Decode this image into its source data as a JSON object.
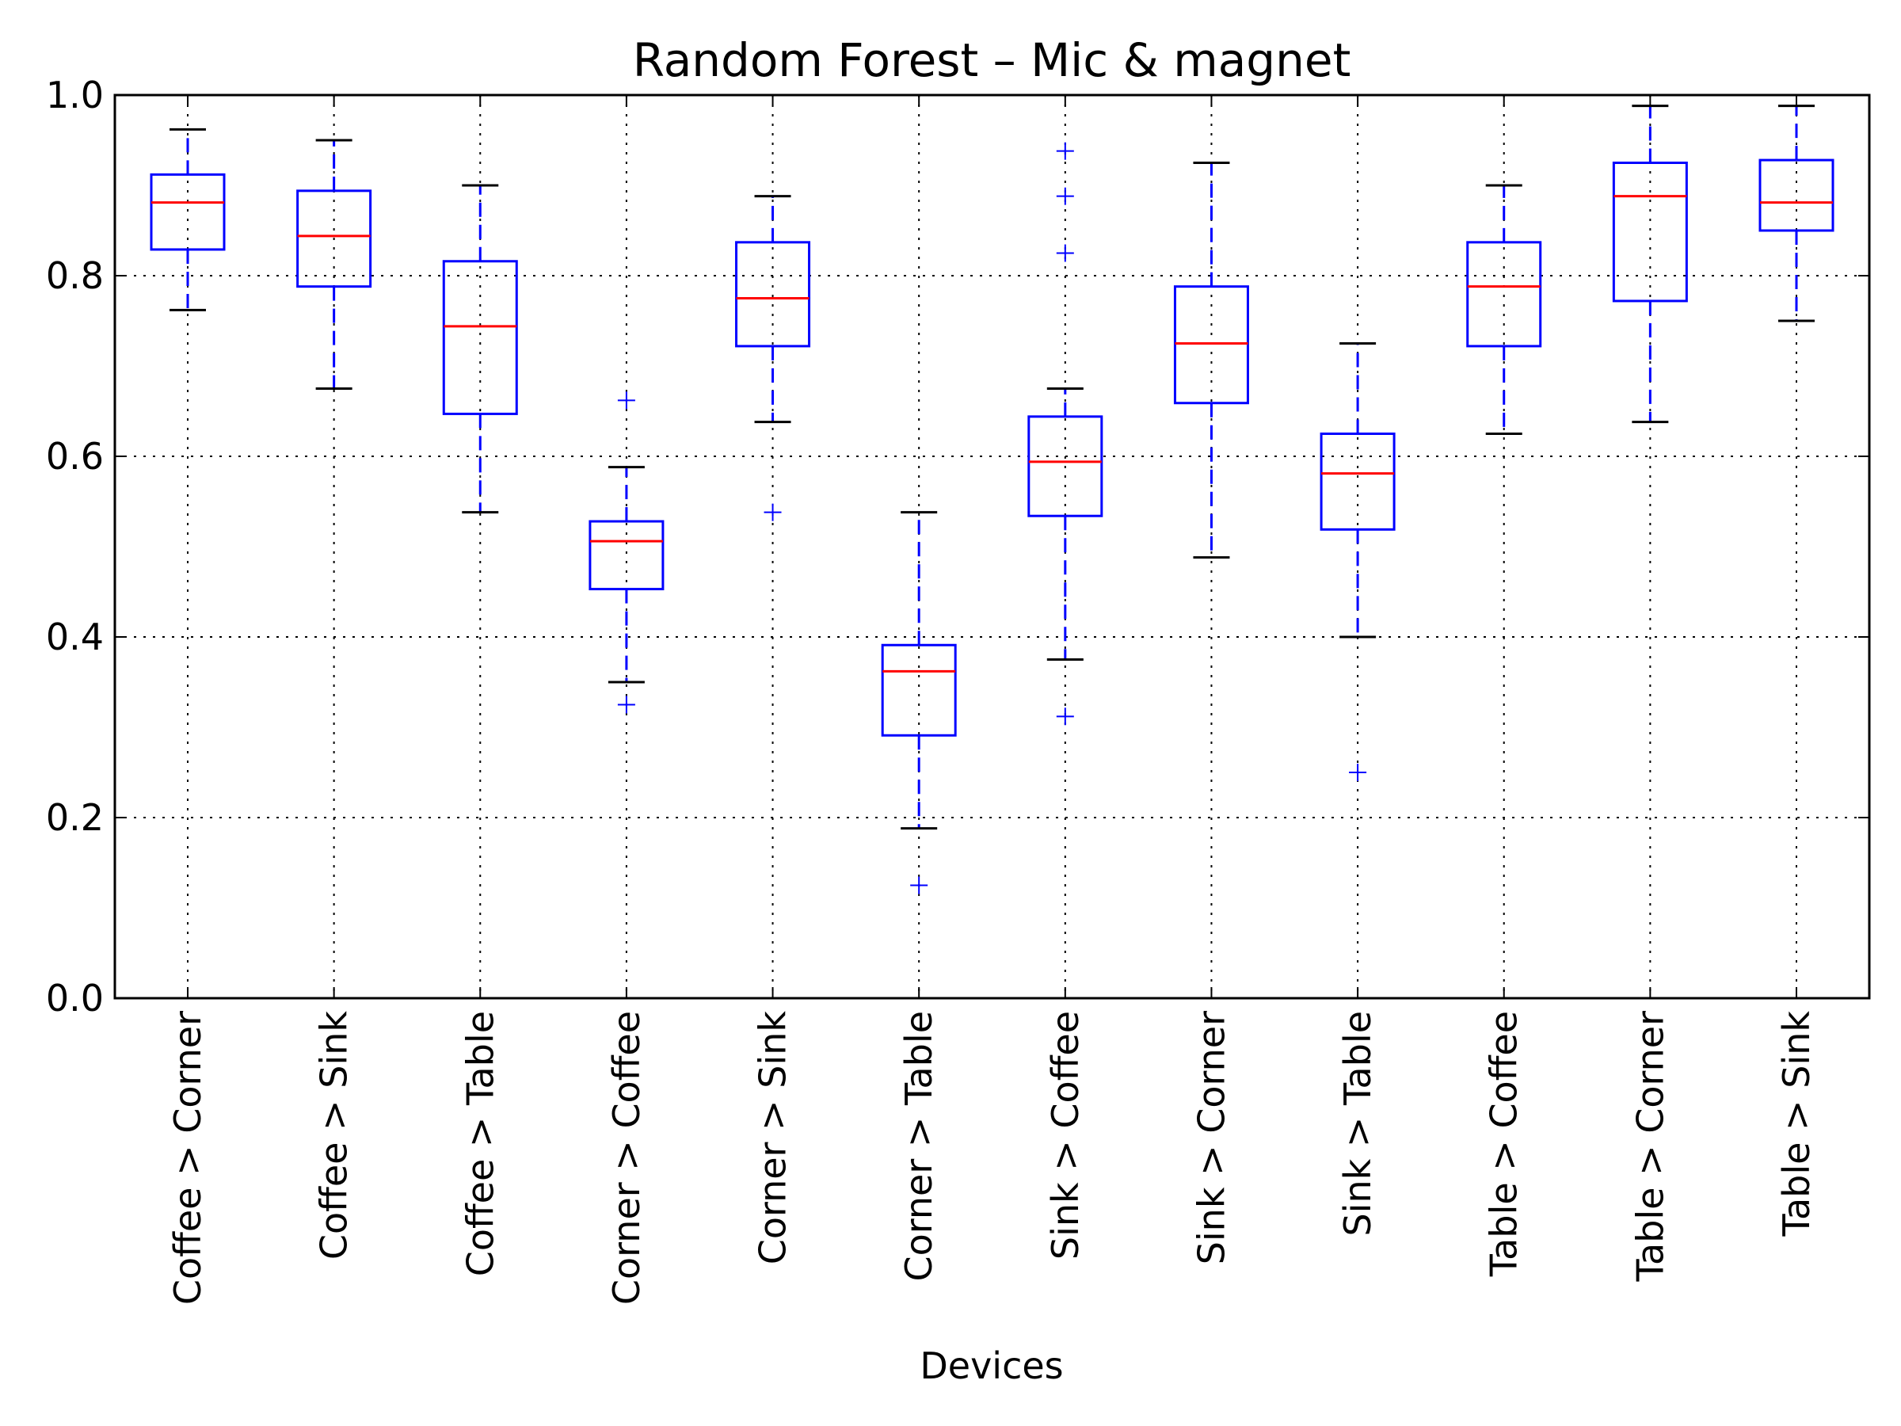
{
  "chart_data": {
    "type": "box",
    "title": "Random Forest – Mic & magnet",
    "xlabel": "Devices",
    "ylabel": "",
    "ylim": [
      0.0,
      1.0
    ],
    "yticks": [
      "0.0",
      "0.2",
      "0.4",
      "0.6",
      "0.8",
      "1.0"
    ],
    "grid": true,
    "colors": {
      "box": "#0000ff",
      "median": "#ff0000",
      "cap": "#000000",
      "flier": "#0000ff",
      "grid": "#000000"
    },
    "categories": [
      "Coffee > Corner",
      "Coffee > Sink",
      "Coffee > Table",
      "Corner > Coffee",
      "Corner > Sink",
      "Corner > Table",
      "Sink > Coffee",
      "Sink > Corner",
      "Sink > Table",
      "Table > Coffee",
      "Table > Corner",
      "Table > Sink"
    ],
    "boxes": [
      {
        "whisker_low": 0.762,
        "q1": 0.829,
        "median": 0.881,
        "q3": 0.912,
        "whisker_high": 0.962,
        "fliers": []
      },
      {
        "whisker_low": 0.675,
        "q1": 0.788,
        "median": 0.844,
        "q3": 0.894,
        "whisker_high": 0.95,
        "fliers": []
      },
      {
        "whisker_low": 0.538,
        "q1": 0.647,
        "median": 0.744,
        "q3": 0.816,
        "whisker_high": 0.9,
        "fliers": []
      },
      {
        "whisker_low": 0.35,
        "q1": 0.453,
        "median": 0.506,
        "q3": 0.528,
        "whisker_high": 0.588,
        "fliers": [
          0.662,
          0.325
        ]
      },
      {
        "whisker_low": 0.638,
        "q1": 0.722,
        "median": 0.775,
        "q3": 0.837,
        "whisker_high": 0.888,
        "fliers": [
          0.538
        ]
      },
      {
        "whisker_low": 0.188,
        "q1": 0.291,
        "median": 0.362,
        "q3": 0.391,
        "whisker_high": 0.538,
        "fliers": [
          0.125
        ]
      },
      {
        "whisker_low": 0.375,
        "q1": 0.534,
        "median": 0.594,
        "q3": 0.644,
        "whisker_high": 0.675,
        "fliers": [
          0.938,
          0.888,
          0.825,
          0.312
        ]
      },
      {
        "whisker_low": 0.488,
        "q1": 0.659,
        "median": 0.725,
        "q3": 0.788,
        "whisker_high": 0.925,
        "fliers": []
      },
      {
        "whisker_low": 0.4,
        "q1": 0.519,
        "median": 0.581,
        "q3": 0.625,
        "whisker_high": 0.725,
        "fliers": [
          0.25
        ]
      },
      {
        "whisker_low": 0.625,
        "q1": 0.722,
        "median": 0.788,
        "q3": 0.837,
        "whisker_high": 0.9,
        "fliers": []
      },
      {
        "whisker_low": 0.638,
        "q1": 0.772,
        "median": 0.888,
        "q3": 0.925,
        "whisker_high": 0.988,
        "fliers": []
      },
      {
        "whisker_low": 0.75,
        "q1": 0.85,
        "median": 0.881,
        "q3": 0.928,
        "whisker_high": 0.988,
        "fliers": []
      }
    ]
  }
}
